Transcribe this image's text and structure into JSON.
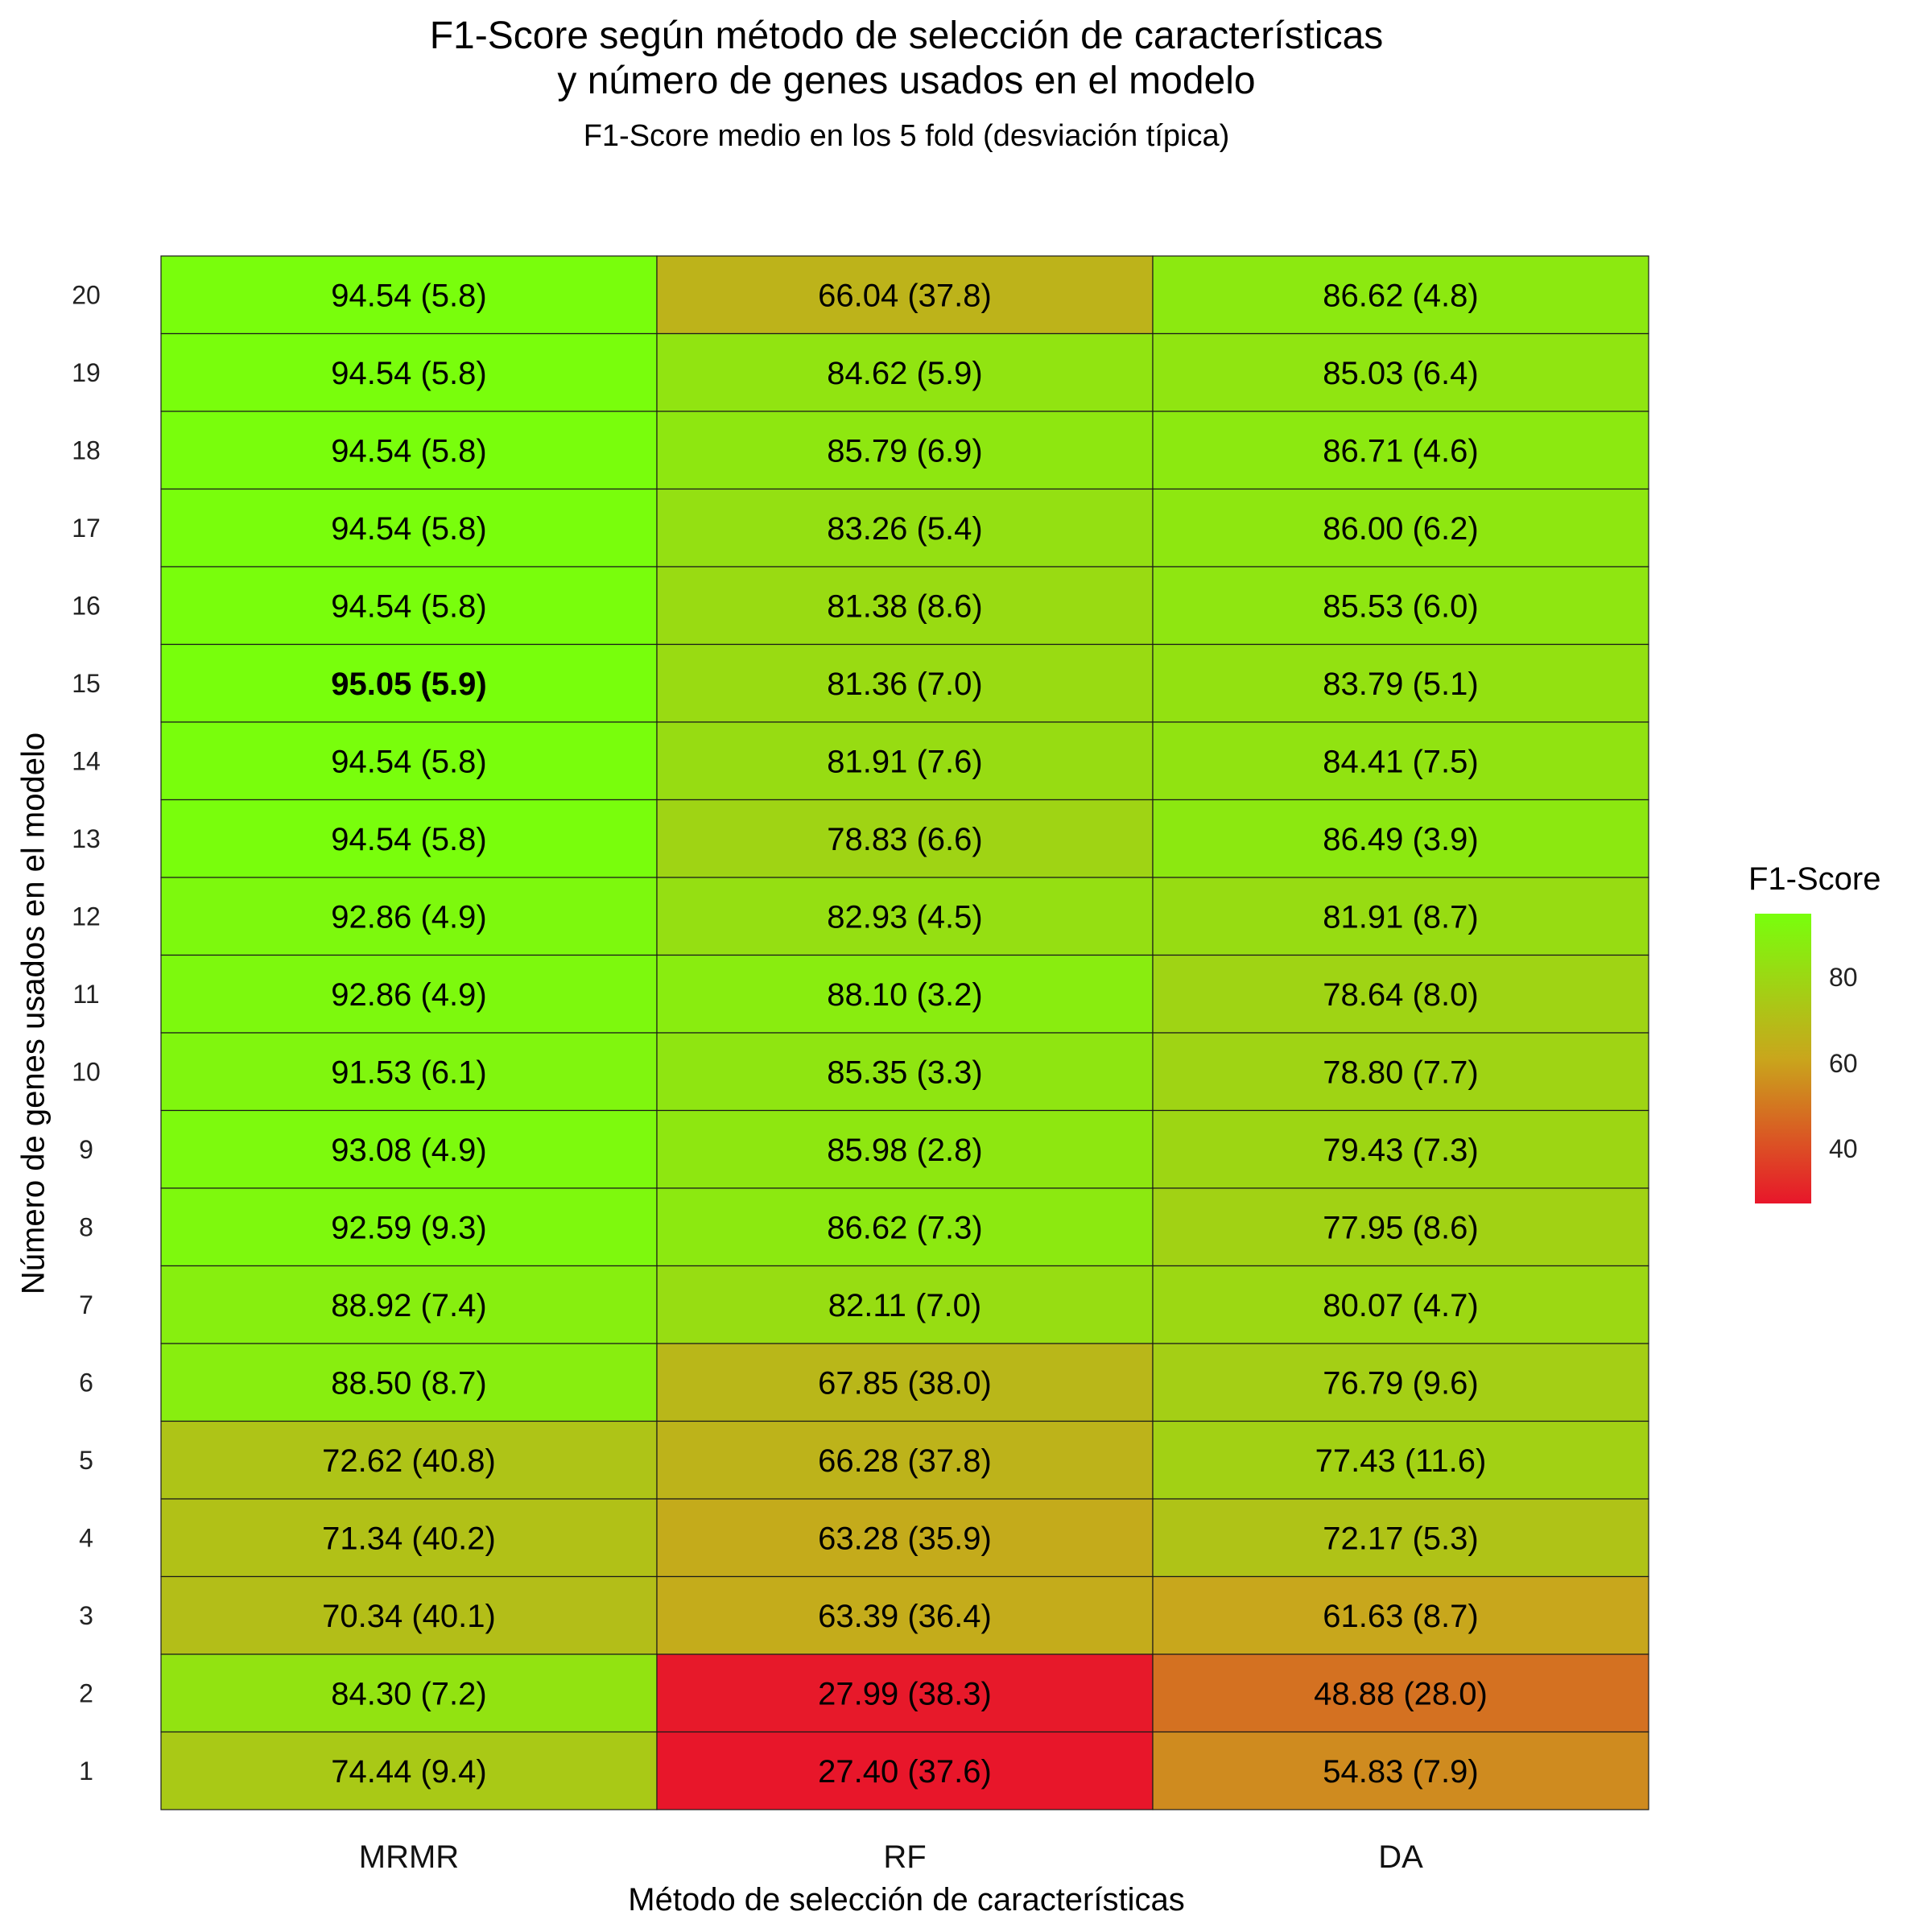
{
  "title_line1": "F1-Score según método de selección de características",
  "title_line2": "y número de genes usados en el modelo",
  "subtitle": "F1-Score medio en los 5 fold (desviación típica)",
  "chart_data": {
    "type": "heatmap",
    "xlabel": "Método de selección de características",
    "ylabel": "Número de genes usados en el modelo",
    "x_categories": [
      "MRMR",
      "RF",
      "DA"
    ],
    "y_categories": [
      20,
      19,
      18,
      17,
      16,
      15,
      14,
      13,
      12,
      11,
      10,
      9,
      8,
      7,
      6,
      5,
      4,
      3,
      2,
      1
    ],
    "values": [
      [
        94.54,
        66.04,
        86.62
      ],
      [
        94.54,
        84.62,
        85.03
      ],
      [
        94.54,
        85.79,
        86.71
      ],
      [
        94.54,
        83.26,
        86.0
      ],
      [
        94.54,
        81.38,
        85.53
      ],
      [
        95.05,
        81.36,
        83.79
      ],
      [
        94.54,
        81.91,
        84.41
      ],
      [
        94.54,
        78.83,
        86.49
      ],
      [
        92.86,
        82.93,
        81.91
      ],
      [
        92.86,
        88.1,
        78.64
      ],
      [
        91.53,
        85.35,
        78.8
      ],
      [
        93.08,
        85.98,
        79.43
      ],
      [
        92.59,
        86.62,
        77.95
      ],
      [
        88.92,
        82.11,
        80.07
      ],
      [
        88.5,
        67.85,
        76.79
      ],
      [
        72.62,
        66.28,
        77.43
      ],
      [
        71.34,
        63.28,
        72.17
      ],
      [
        70.34,
        63.39,
        61.63
      ],
      [
        84.3,
        27.99,
        48.88
      ],
      [
        74.44,
        27.4,
        54.83
      ]
    ],
    "labels": [
      [
        "94.54 (5.8)",
        "66.04 (37.8)",
        "86.62 (4.8)"
      ],
      [
        "94.54 (5.8)",
        "84.62 (5.9)",
        "85.03 (6.4)"
      ],
      [
        "94.54 (5.8)",
        "85.79 (6.9)",
        "86.71 (4.6)"
      ],
      [
        "94.54 (5.8)",
        "83.26 (5.4)",
        "86.00 (6.2)"
      ],
      [
        "94.54 (5.8)",
        "81.38 (8.6)",
        "85.53 (6.0)"
      ],
      [
        "95.05 (5.9)",
        "81.36 (7.0)",
        "83.79 (5.1)"
      ],
      [
        "94.54 (5.8)",
        "81.91 (7.6)",
        "84.41 (7.5)"
      ],
      [
        "94.54 (5.8)",
        "78.83 (6.6)",
        "86.49 (3.9)"
      ],
      [
        "92.86 (4.9)",
        "82.93 (4.5)",
        "81.91 (8.7)"
      ],
      [
        "92.86 (4.9)",
        "88.10 (3.2)",
        "78.64 (8.0)"
      ],
      [
        "91.53 (6.1)",
        "85.35 (3.3)",
        "78.80 (7.7)"
      ],
      [
        "93.08 (4.9)",
        "85.98 (2.8)",
        "79.43 (7.3)"
      ],
      [
        "92.59 (9.3)",
        "86.62 (7.3)",
        "77.95 (8.6)"
      ],
      [
        "88.92 (7.4)",
        "82.11 (7.0)",
        "80.07 (4.7)"
      ],
      [
        "88.50 (8.7)",
        "67.85 (38.0)",
        "76.79 (9.6)"
      ],
      [
        "72.62 (40.8)",
        "66.28 (37.8)",
        "77.43 (11.6)"
      ],
      [
        "71.34 (40.2)",
        "63.28 (35.9)",
        "72.17 (5.3)"
      ],
      [
        "70.34 (40.1)",
        "63.39 (36.4)",
        "61.63 (8.7)"
      ],
      [
        "84.30 (7.2)",
        "27.99 (38.3)",
        "48.88 (28.0)"
      ],
      [
        "74.44 (9.4)",
        "27.40 (37.6)",
        "54.83 (7.9)"
      ]
    ],
    "highlight": {
      "row_category": 15,
      "column_category": "MRMR"
    },
    "color_scale": {
      "low_color": "#e8162a",
      "mid_color": "#c9a61c",
      "high_color": "#78ff0c",
      "min": 27.4,
      "max": 95.05
    },
    "legend": {
      "title": "F1-Score",
      "ticks": [
        40,
        60,
        80
      ],
      "position": "right"
    },
    "grid": false
  }
}
